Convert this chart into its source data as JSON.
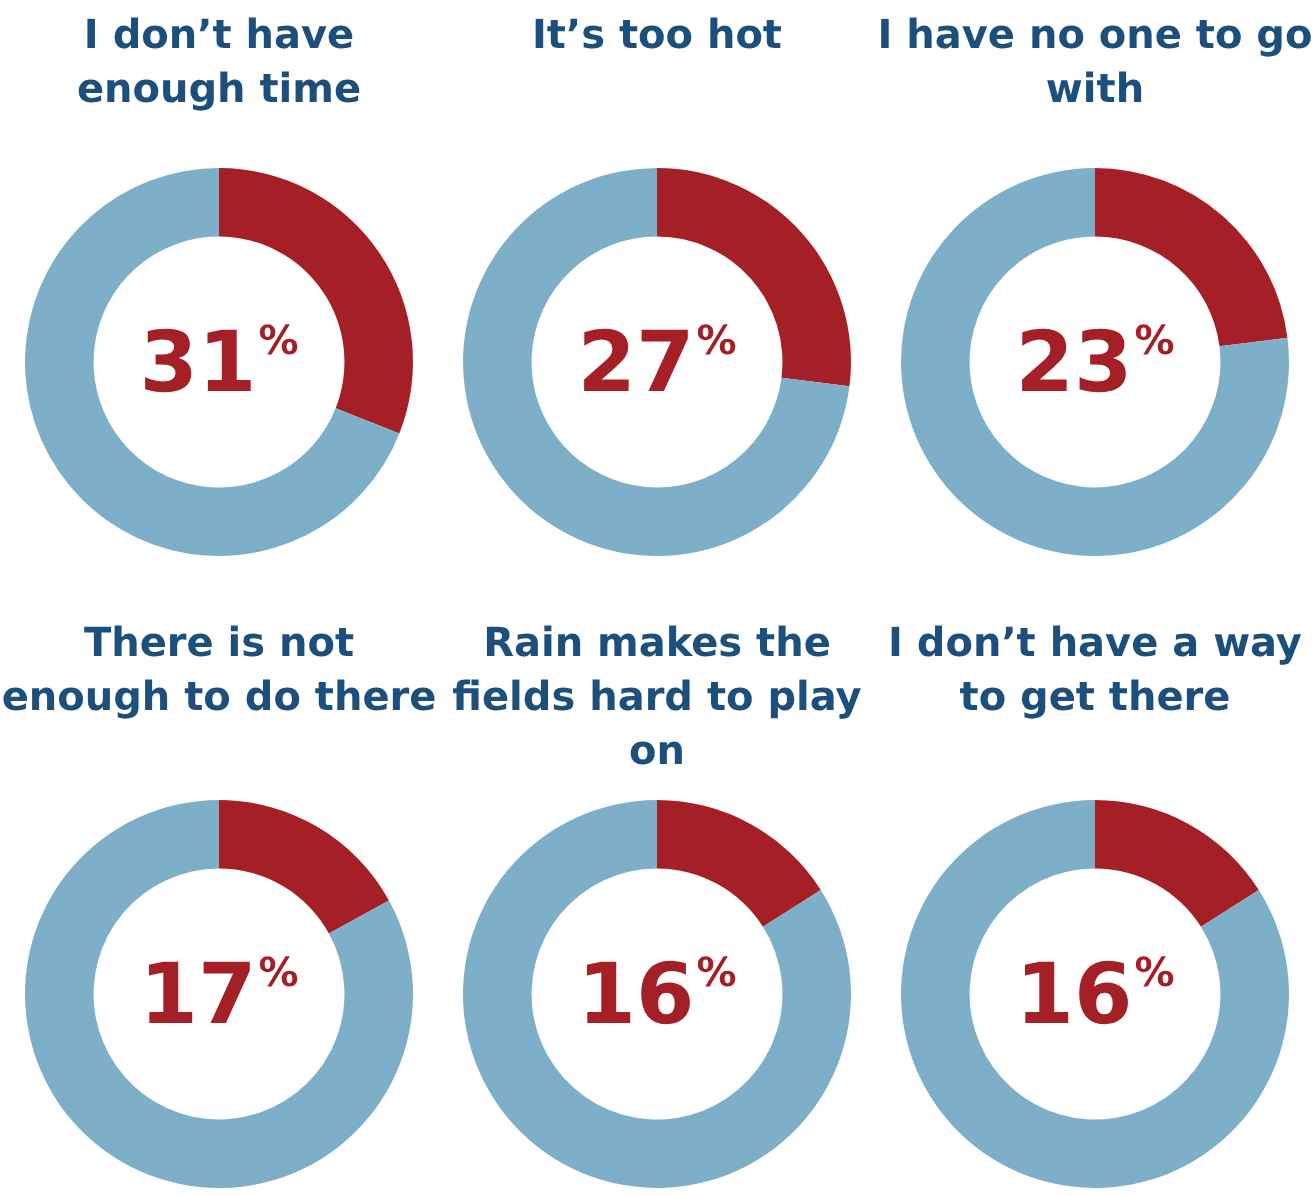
{
  "chart_data": [
    {
      "type": "donut",
      "title": "I don’t have enough time",
      "categories": [
        null,
        null
      ],
      "values": [
        31,
        69
      ],
      "colors": [
        "#a51f27",
        "#7eafc9"
      ],
      "value_labels": [
        "31%",
        null
      ]
    },
    {
      "type": "donut",
      "title": "It’s too hot",
      "categories": [
        null,
        null
      ],
      "values": [
        27,
        73
      ],
      "colors": [
        "#a51f27",
        "#7eafc9"
      ],
      "value_labels": [
        "27%",
        null
      ]
    },
    {
      "type": "donut",
      "title": "I have no one to go with",
      "categories": [
        null,
        null
      ],
      "values": [
        23,
        77
      ],
      "colors": [
        "#a51f27",
        "#7eafc9"
      ],
      "value_labels": [
        "23%",
        null
      ]
    },
    {
      "type": "donut",
      "title": "There is not enough to do there",
      "categories": [
        null,
        null
      ],
      "values": [
        17,
        83
      ],
      "colors": [
        "#a51f27",
        "#7eafc9"
      ],
      "value_labels": [
        "17%",
        null
      ]
    },
    {
      "type": "donut",
      "title": "Rain makes the fields hard to play on",
      "categories": [
        null,
        null
      ],
      "values": [
        16,
        84
      ],
      "colors": [
        "#a51f27",
        "#7eafc9"
      ],
      "value_labels": [
        "16%",
        null
      ]
    },
    {
      "type": "donut",
      "title": "I don’t have a way to get there",
      "categories": [
        null,
        null
      ],
      "values": [
        16,
        84
      ],
      "colors": [
        "#a51f27",
        "#7eafc9"
      ],
      "value_labels": [
        "16%",
        null
      ]
    }
  ]
}
